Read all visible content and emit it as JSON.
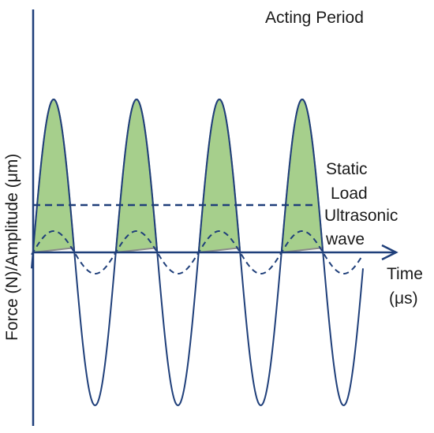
{
  "labels": {
    "acting_period": "Acting Period",
    "static_line1": "Static",
    "static_line2": "Load",
    "ultrasonic_line1": "Ultrasonic",
    "ultrasonic_line2": "wave",
    "time_line1": "Time",
    "time_line2": "(μs)",
    "y_axis": "Force (N)/Amplitude (μm)"
  },
  "colors": {
    "axis": "#1f3f7a",
    "wave": "#1f3f7a",
    "fill": "#a6cf8c",
    "fill_stroke": "#8a8a8a"
  }
}
